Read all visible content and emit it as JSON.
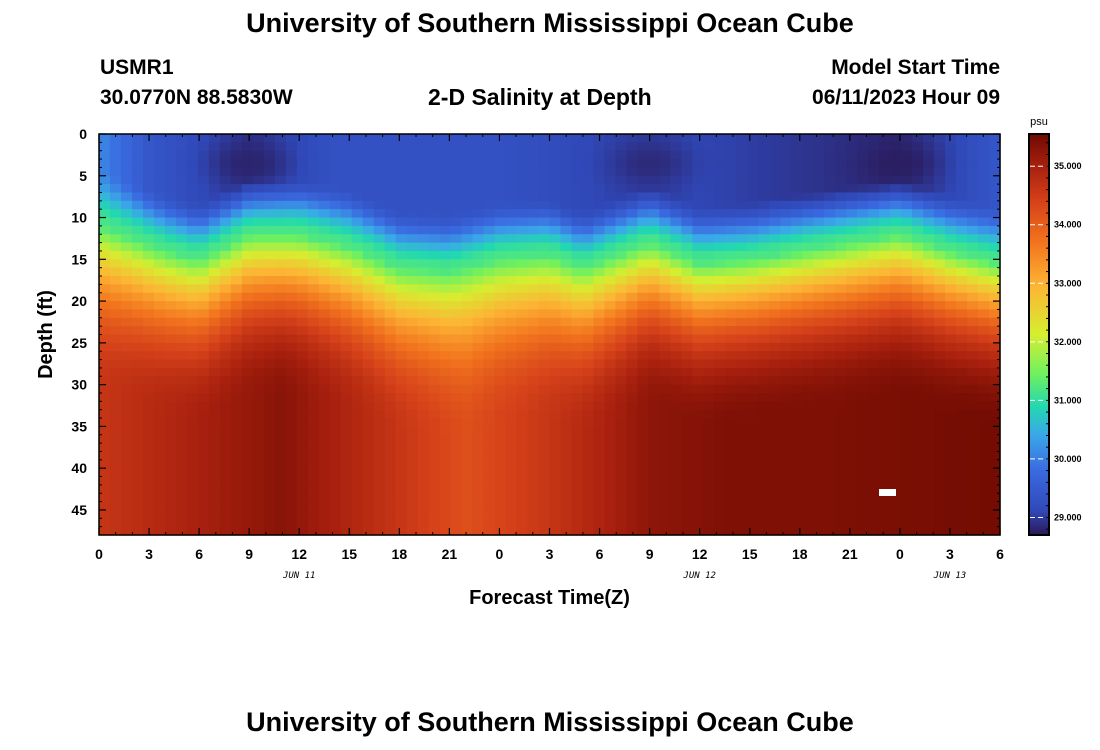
{
  "header": {
    "title": "University of Southern Mississippi Ocean Cube",
    "station_id": "USMR1",
    "coords": "30.0770N  88.5830W",
    "plot_title": "2-D Salinity at Depth",
    "model_start_label": "Model Start Time",
    "model_start_value": "06/11/2023 Hour 09"
  },
  "footer": {
    "title": "University of Southern Mississippi Ocean Cube"
  },
  "colors": {
    "scale": [
      "#2a1856",
      "#3048b8",
      "#3a6ae0",
      "#3aa8e8",
      "#22d8b0",
      "#6ef060",
      "#d6ee30",
      "#fcb534",
      "#f2741e",
      "#d6421a",
      "#a8200e",
      "#6e0a02"
    ],
    "scale_positions": [
      0,
      0.06,
      0.16,
      0.25,
      0.32,
      0.4,
      0.5,
      0.62,
      0.73,
      0.83,
      0.92,
      1
    ]
  },
  "chart_data": {
    "type": "heatmap",
    "title": "2-D Salinity at Depth",
    "xlabel": "Forecast Time(Z)",
    "ylabel": "Depth (ft)",
    "xlim": [
      0,
      54
    ],
    "ylim": [
      48,
      0
    ],
    "x_ticks": [
      0,
      3,
      6,
      9,
      12,
      15,
      18,
      21,
      24,
      27,
      30,
      33,
      36,
      39,
      42,
      45,
      48,
      51,
      54
    ],
    "x_tick_labels": [
      "0",
      "3",
      "6",
      "9",
      "12",
      "15",
      "18",
      "21",
      "0",
      "3",
      "6",
      "9",
      "12",
      "15",
      "18",
      "21",
      "0",
      "3",
      "6"
    ],
    "y_ticks": [
      0,
      5,
      10,
      15,
      20,
      25,
      30,
      35,
      40,
      45
    ],
    "y_tick_labels": [
      "0",
      "5",
      "10",
      "15",
      "20",
      "25",
      "30",
      "35",
      "40",
      "45"
    ],
    "date_labels": [
      {
        "x": 12,
        "label": "JUN 11"
      },
      {
        "x": 36,
        "label": "JUN 12"
      },
      {
        "x": 51,
        "label": "JUN 13"
      }
    ],
    "colorbar": {
      "unit": "psu",
      "min": 28.7,
      "max": 35.55,
      "ticks": [
        29.0,
        30.0,
        31.0,
        32.0,
        33.0,
        34.0,
        35.0
      ],
      "tick_labels": [
        "29.000",
        "30.000",
        "31.000",
        "32.000",
        "33.000",
        "34.000",
        "35.000"
      ]
    },
    "halocline_depth_ft": [
      {
        "x": 0,
        "depth": 11
      },
      {
        "x": 4,
        "depth": 14
      },
      {
        "x": 6,
        "depth": 15
      },
      {
        "x": 9,
        "depth": 12
      },
      {
        "x": 12,
        "depth": 12
      },
      {
        "x": 15,
        "depth": 13.5
      },
      {
        "x": 18,
        "depth": 16
      },
      {
        "x": 21,
        "depth": 16.5
      },
      {
        "x": 24,
        "depth": 15
      },
      {
        "x": 27,
        "depth": 14.5
      },
      {
        "x": 29,
        "depth": 16
      },
      {
        "x": 33,
        "depth": 13
      },
      {
        "x": 36,
        "depth": 15.5
      },
      {
        "x": 39,
        "depth": 15
      },
      {
        "x": 42,
        "depth": 14
      },
      {
        "x": 45,
        "depth": 13
      },
      {
        "x": 48,
        "depth": 12
      },
      {
        "x": 51,
        "depth": 14
      },
      {
        "x": 54,
        "depth": 15.5
      }
    ],
    "deep_salinity_psu": [
      {
        "x": 0,
        "value": 34.6
      },
      {
        "x": 6,
        "value": 35.0
      },
      {
        "x": 11,
        "value": 35.3
      },
      {
        "x": 17,
        "value": 34.7
      },
      {
        "x": 22,
        "value": 34.2
      },
      {
        "x": 27,
        "value": 34.6
      },
      {
        "x": 33,
        "value": 35.25
      },
      {
        "x": 38,
        "value": 35.4
      },
      {
        "x": 44,
        "value": 35.4
      },
      {
        "x": 54,
        "value": 35.5
      }
    ],
    "surface_salinity_psu": [
      {
        "x": 0,
        "value": 30.1
      },
      {
        "x": 3,
        "value": 29.4
      },
      {
        "x": 9,
        "value": 28.9
      },
      {
        "x": 14,
        "value": 29.3
      },
      {
        "x": 24,
        "value": 29.3
      },
      {
        "x": 33,
        "value": 29.0
      },
      {
        "x": 36,
        "value": 29.1
      },
      {
        "x": 48,
        "value": 28.8
      },
      {
        "x": 54,
        "value": 29.4
      }
    ],
    "surface_minima": [
      {
        "x": 9,
        "depth": 3.5,
        "value": 28.8
      },
      {
        "x": 33,
        "depth": 3.5,
        "value": 28.85
      },
      {
        "x": 48,
        "depth": 3.5,
        "value": 28.75
      }
    ]
  }
}
